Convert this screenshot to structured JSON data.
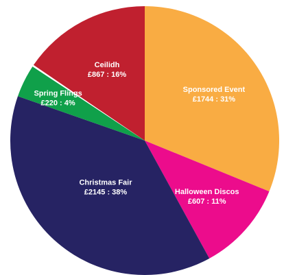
{
  "chart_data": {
    "type": "pie",
    "title": "",
    "currency": "£",
    "slices": [
      {
        "name": "Sponsored Event",
        "value": 1744,
        "percent": 31,
        "color": "#F9AC43",
        "label_name": "Sponsored Event",
        "label_value": "£1744 : 31%"
      },
      {
        "name": "Halloween Discos",
        "value": 607,
        "percent": 11,
        "color": "#EC0C8C",
        "label_name": "Halloween Discos",
        "label_value": "£607 : 11%"
      },
      {
        "name": "Christmas Fair",
        "value": 2145,
        "percent": 38,
        "color": "#262363",
        "label_name": "Christmas Fair",
        "label_value": "£2145 : 38%"
      },
      {
        "name": "Spring Flings",
        "value": 220,
        "percent": 4,
        "color": "#10A04A",
        "label_name": "Spring Flings",
        "label_value": "£220 : 4%"
      },
      {
        "name": "",
        "value": 12,
        "percent": 0,
        "color": "#FFFFFF",
        "label_name": "",
        "label_value": ""
      },
      {
        "name": "Ceilidh",
        "value": 867,
        "percent": 16,
        "color": "#C0202F",
        "label_name": "Ceilidh",
        "label_value": "£867 : 16%"
      }
    ]
  }
}
